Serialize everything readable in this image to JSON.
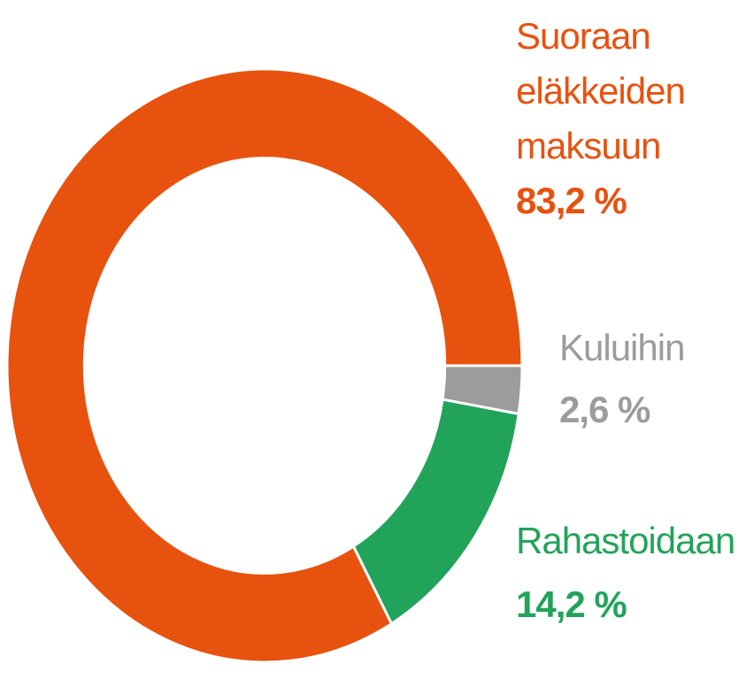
{
  "chart_data": {
    "type": "donut",
    "categories": [
      "Kuluihin",
      "Rahastoidaan",
      "Suoraan eläkkeiden maksuun"
    ],
    "values": [
      2.6,
      14.2,
      83.2
    ],
    "value_labels": [
      "2,6 %",
      "14,2 %",
      "83,2 %"
    ],
    "colors": [
      "#9c9c9c",
      "#22a35a",
      "#e8520f"
    ]
  }
}
